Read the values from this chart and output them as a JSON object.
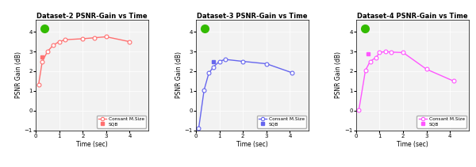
{
  "plots": [
    {
      "title": "Dataset-2 PSNR-Gain vs Time",
      "xlabel": "Time (sec)",
      "ylabel": "PSNR Gain (dB)",
      "xlim": [
        0,
        4.8
      ],
      "ylim": [
        -1,
        4.6
      ],
      "yticks": [
        -1,
        0,
        1,
        2,
        3,
        4
      ],
      "xticks": [
        0,
        1,
        2,
        3,
        4
      ],
      "color": "#FF7070",
      "sqb_point": [
        0.28,
        2.72
      ],
      "constant_x": [
        0.12,
        0.28,
        0.5,
        0.75,
        1.0,
        1.25,
        2.0,
        2.5,
        3.0,
        4.0
      ],
      "constant_y": [
        1.3,
        2.5,
        3.0,
        3.33,
        3.5,
        3.6,
        3.65,
        3.7,
        3.75,
        3.5
      ],
      "green_dot_axes": [
        0.08,
        0.92
      ]
    },
    {
      "title": "Dataset-3 PSNR-Gain vs Time",
      "xlabel": "Time (sec)",
      "ylabel": "PSNR Gain (dB)",
      "xlim": [
        0,
        4.8
      ],
      "ylim": [
        -1,
        4.6
      ],
      "yticks": [
        -1,
        0,
        1,
        2,
        3,
        4
      ],
      "xticks": [
        0,
        1,
        2,
        3,
        4
      ],
      "color": "#6666EE",
      "sqb_point": [
        0.75,
        2.47
      ],
      "constant_x": [
        0.12,
        0.35,
        0.55,
        0.75,
        1.0,
        1.25,
        2.0,
        3.0,
        4.1
      ],
      "constant_y": [
        -0.9,
        1.05,
        1.9,
        2.22,
        2.5,
        2.6,
        2.5,
        2.38,
        1.92
      ],
      "green_dot_axes": [
        0.08,
        0.92
      ]
    },
    {
      "title": "Dataset-4 PSNR-Gain vs Time",
      "xlabel": "Time (sec)",
      "ylabel": "PSNR Gain (dB)",
      "xlim": [
        0,
        4.8
      ],
      "ylim": [
        -1,
        4.6
      ],
      "yticks": [
        -1,
        0,
        1,
        2,
        3,
        4
      ],
      "xticks": [
        0,
        1,
        2,
        3,
        4
      ],
      "color": "#FF55FF",
      "sqb_point": [
        0.5,
        2.9
      ],
      "constant_x": [
        0.12,
        0.4,
        0.6,
        0.85,
        1.0,
        1.25,
        1.5,
        2.0,
        3.0,
        4.15
      ],
      "constant_y": [
        0.03,
        2.05,
        2.5,
        2.7,
        2.95,
        3.0,
        2.97,
        2.95,
        2.1,
        1.5
      ],
      "green_dot_axes": [
        0.08,
        0.92
      ]
    }
  ],
  "legend_labels": [
    "Consant M.Size",
    "SQB"
  ],
  "green_color": "#33BB00",
  "bg_color": "#F2F2F2"
}
